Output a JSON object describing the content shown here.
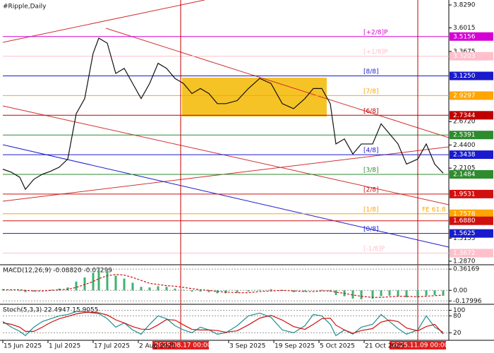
{
  "chart_data": [
    {
      "type": "line",
      "title": "#Ripple,Daily",
      "color": "#111111",
      "x": [
        "2025-06-15",
        "2025-06-18",
        "2025-06-21",
        "2025-06-23",
        "2025-06-26",
        "2025-06-29",
        "2025-07-02",
        "2025-07-05",
        "2025-07-08",
        "2025-07-11",
        "2025-07-14",
        "2025-07-17",
        "2025-07-19",
        "2025-07-22",
        "2025-07-25",
        "2025-07-28",
        "2025-07-31",
        "2025-08-03",
        "2025-08-06",
        "2025-08-09",
        "2025-08-12",
        "2025-08-15",
        "2025-08-18",
        "2025-08-21",
        "2025-08-24",
        "2025-08-27",
        "2025-08-30",
        "2025-09-02",
        "2025-09-06",
        "2025-09-10",
        "2025-09-14",
        "2025-09-18",
        "2025-09-22",
        "2025-09-26",
        "2025-09-30",
        "2025-10-03",
        "2025-10-06",
        "2025-10-09",
        "2025-10-11",
        "2025-10-14",
        "2025-10-17",
        "2025-10-20",
        "2025-10-24",
        "2025-10-27",
        "2025-10-30",
        "2025-11-02",
        "2025-11-05",
        "2025-11-09",
        "2025-11-12",
        "2025-11-15",
        "2025-11-18"
      ],
      "values": [
        2.2,
        2.17,
        2.12,
        2.0,
        2.1,
        2.15,
        2.18,
        2.22,
        2.3,
        2.75,
        2.9,
        3.35,
        3.5,
        3.45,
        3.15,
        3.2,
        3.05,
        2.9,
        3.05,
        3.25,
        3.2,
        3.1,
        3.05,
        2.95,
        3.0,
        2.95,
        2.85,
        2.85,
        2.88,
        3.0,
        3.1,
        3.05,
        2.85,
        2.8,
        2.9,
        3.0,
        3.0,
        2.85,
        2.45,
        2.5,
        2.35,
        2.45,
        2.45,
        2.65,
        2.55,
        2.45,
        2.25,
        2.3,
        2.45,
        2.25,
        2.16
      ],
      "xlim": [
        "2025-06-15",
        "2025-11-20"
      ],
      "xticks": [
        {
          "value": "2025-06-15",
          "label": "15 Jun 2025"
        },
        {
          "value": "2025-07-01",
          "label": "1 Jul 2025"
        },
        {
          "value": "2025-07-17",
          "label": "17 Jul 2025"
        },
        {
          "value": "2025-08-02",
          "label": "2 Aug 2025"
        },
        {
          "value": "2025-09-03",
          "label": "3 Sep 2025"
        },
        {
          "value": "2025-09-19",
          "label": "19 Sep 2025"
        },
        {
          "value": "2025-10-05",
          "label": "5 Oct 2025"
        },
        {
          "value": "2025-10-21",
          "label": "21 Oct 2025"
        }
      ],
      "markers": [
        {
          "value": "2025-08-17",
          "label": "2025.08.17 00:00"
        },
        {
          "value": "2025-11-09",
          "label": "2025.11.09 00:00"
        }
      ],
      "ylim": [
        1.252,
        3.878
      ],
      "yticks": [
        {
          "value": 3.829,
          "label": "3.8290"
        },
        {
          "value": 3.6015,
          "label": "3.6015"
        },
        {
          "value": 3.3675,
          "label": "3.3675"
        },
        {
          "value": 2.672,
          "label": "2.6720"
        },
        {
          "value": 2.44,
          "label": "2.4400"
        },
        {
          "value": 2.2105,
          "label": "2.2105"
        },
        {
          "value": 1.5155,
          "label": "1.5155"
        },
        {
          "value": 1.287,
          "label": "1.2870"
        }
      ],
      "levels": [
        {
          "name": "[+2/8]P",
          "value": 3.5156,
          "label": "3.5156",
          "color": "#d400d4"
        },
        {
          "name": "[+1/8]P",
          "value": 3.3203,
          "label": "3.3203",
          "color": "#ffc0cb"
        },
        {
          "name": "[8/8]",
          "value": 3.125,
          "label": "3.1250",
          "color": "#1a1acc"
        },
        {
          "name": "[7/8]",
          "value": 2.9297,
          "label": "2.9297",
          "color": "#ffa500"
        },
        {
          "name": "[6/8]",
          "value": 2.7344,
          "label": "2.7344",
          "color": "#c00000"
        },
        {
          "name": null,
          "value": 2.5391,
          "label": "2.5391",
          "color": "#2e8b2e"
        },
        {
          "name": "[4/8]",
          "value": 2.3438,
          "label": "2.3438",
          "color": "#1a1acc"
        },
        {
          "name": "[3/8]",
          "value": 2.1484,
          "label": "2.1484",
          "color": "#2e8b2e"
        },
        {
          "name": "[2/8]",
          "value": 1.9531,
          "label": "1.9531",
          "color": "#d01010"
        },
        {
          "name": "[1/8]",
          "value": 1.7578,
          "label": "1.7578",
          "color": "#ffa500"
        },
        {
          "name": null,
          "value": 1.688,
          "label": "1.6880",
          "color": "#d01010"
        },
        {
          "name": "[0/8]",
          "value": 1.5625,
          "label": "1.5625",
          "color": "#1a1acc"
        },
        {
          "name": "[-1/8]P",
          "value": 1.3672,
          "label": "1.3672",
          "color": "#ffc0cb"
        }
      ],
      "annotations": [
        "FE 61.8"
      ]
    },
    {
      "type": "bar",
      "title": "MACD(12,26,9) -0.08820 -0.07299",
      "color": "#3cb371",
      "signal_color": "#d01010",
      "x": [
        "2025-06-15",
        "2025-06-18",
        "2025-06-21",
        "2025-06-23",
        "2025-06-26",
        "2025-06-29",
        "2025-07-02",
        "2025-07-05",
        "2025-07-08",
        "2025-07-11",
        "2025-07-14",
        "2025-07-17",
        "2025-07-19",
        "2025-07-22",
        "2025-07-25",
        "2025-07-28",
        "2025-07-31",
        "2025-08-03",
        "2025-08-06",
        "2025-08-09",
        "2025-08-12",
        "2025-08-15",
        "2025-08-18",
        "2025-08-21",
        "2025-08-24",
        "2025-08-27",
        "2025-08-30",
        "2025-09-02",
        "2025-09-06",
        "2025-09-10",
        "2025-09-14",
        "2025-09-18",
        "2025-09-22",
        "2025-09-26",
        "2025-09-30",
        "2025-10-03",
        "2025-10-06",
        "2025-10-09",
        "2025-10-11",
        "2025-10-14",
        "2025-10-17",
        "2025-10-20",
        "2025-10-24",
        "2025-10-27",
        "2025-10-30",
        "2025-11-02",
        "2025-11-05",
        "2025-11-09",
        "2025-11-12",
        "2025-11-15",
        "2025-11-18"
      ],
      "values": [
        0.02,
        0.01,
        -0.01,
        -0.03,
        -0.02,
        0.0,
        0.01,
        0.03,
        0.05,
        0.15,
        0.22,
        0.3,
        0.35,
        0.33,
        0.25,
        0.2,
        0.13,
        0.06,
        0.05,
        0.07,
        0.06,
        0.03,
        0.01,
        -0.02,
        -0.02,
        -0.03,
        -0.05,
        -0.05,
        -0.04,
        -0.02,
        0.01,
        0.02,
        -0.01,
        -0.03,
        -0.02,
        0.0,
        0.01,
        -0.02,
        -0.08,
        -0.1,
        -0.14,
        -0.15,
        -0.14,
        -0.1,
        -0.09,
        -0.1,
        -0.12,
        -0.12,
        -0.09,
        -0.08,
        -0.09
      ],
      "signal": [
        0.01,
        0.01,
        0.01,
        0.0,
        -0.01,
        -0.01,
        0.0,
        0.01,
        0.02,
        0.05,
        0.1,
        0.15,
        0.2,
        0.25,
        0.27,
        0.26,
        0.22,
        0.17,
        0.12,
        0.1,
        0.08,
        0.07,
        0.05,
        0.03,
        0.01,
        0.0,
        -0.02,
        -0.03,
        -0.04,
        -0.04,
        -0.02,
        -0.01,
        0.0,
        -0.01,
        -0.02,
        -0.02,
        -0.01,
        -0.01,
        -0.03,
        -0.05,
        -0.08,
        -0.1,
        -0.12,
        -0.12,
        -0.11,
        -0.1,
        -0.1,
        -0.11,
        -0.1,
        -0.09,
        -0.08
      ],
      "xlim": [
        "2025-06-15",
        "2025-11-20"
      ],
      "ylim": [
        -0.237,
        0.424
      ],
      "yticks": [
        0.36169,
        {
          "value": 0,
          "label": "0.00"
        },
        -0.17996
      ]
    },
    {
      "type": "line",
      "title": "Stoch(5,3,3) 22.4947 15.9055",
      "color": "#1f8f8f",
      "signal_color": "#d01010",
      "x": [
        "2025-06-15",
        "2025-06-18",
        "2025-06-21",
        "2025-06-23",
        "2025-06-26",
        "2025-06-29",
        "2025-07-02",
        "2025-07-05",
        "2025-07-08",
        "2025-07-11",
        "2025-07-14",
        "2025-07-17",
        "2025-07-19",
        "2025-07-22",
        "2025-07-25",
        "2025-07-28",
        "2025-07-31",
        "2025-08-03",
        "2025-08-06",
        "2025-08-09",
        "2025-08-12",
        "2025-08-15",
        "2025-08-18",
        "2025-08-21",
        "2025-08-24",
        "2025-08-27",
        "2025-08-30",
        "2025-09-02",
        "2025-09-06",
        "2025-09-10",
        "2025-09-14",
        "2025-09-18",
        "2025-09-22",
        "2025-09-26",
        "2025-09-30",
        "2025-10-03",
        "2025-10-06",
        "2025-10-09",
        "2025-10-11",
        "2025-10-14",
        "2025-10-17",
        "2025-10-20",
        "2025-10-24",
        "2025-10-27",
        "2025-10-30",
        "2025-11-02",
        "2025-11-05",
        "2025-11-09",
        "2025-11-12",
        "2025-11-15",
        "2025-11-18"
      ],
      "values": [
        60,
        40,
        25,
        10,
        40,
        60,
        70,
        80,
        85,
        95,
        95,
        90,
        88,
        70,
        40,
        55,
        30,
        15,
        50,
        80,
        70,
        45,
        30,
        20,
        40,
        30,
        15,
        20,
        45,
        80,
        90,
        75,
        30,
        20,
        45,
        85,
        80,
        50,
        10,
        30,
        15,
        40,
        50,
        85,
        60,
        35,
        15,
        30,
        80,
        40,
        22
      ],
      "signal": [
        55,
        50,
        40,
        25,
        25,
        40,
        57,
        70,
        78,
        87,
        92,
        93,
        91,
        83,
        66,
        55,
        42,
        33,
        32,
        48,
        67,
        65,
        48,
        32,
        30,
        30,
        28,
        22,
        27,
        48,
        72,
        82,
        65,
        42,
        32,
        50,
        70,
        72,
        47,
        30,
        18,
        28,
        35,
        58,
        65,
        60,
        37,
        27,
        42,
        50,
        16
      ],
      "xlim": [
        "2025-06-15",
        "2025-11-20"
      ],
      "ylim": [
        -6.7,
        118.7
      ],
      "yticks": [
        100,
        80,
        20
      ]
    }
  ]
}
